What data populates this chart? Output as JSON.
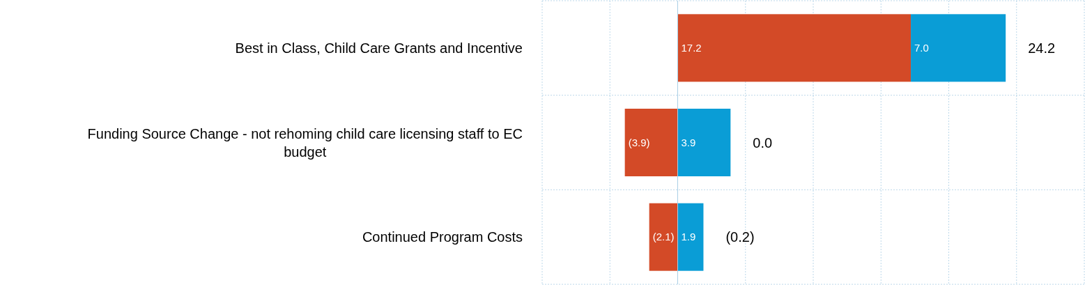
{
  "chart_data": {
    "type": "bar",
    "orientation": "horizontal",
    "stacked": true,
    "categories": [
      "Best in Class, Child Care Grants and Incentive",
      "Funding Source Change - not rehoming child care licensing staff to EC budget",
      "Continued Program Costs"
    ],
    "series": [
      {
        "color": "#d34a27",
        "values": [
          17.2,
          -3.9,
          -2.1
        ],
        "value_labels": [
          "17.2",
          "(3.9)",
          "(2.1)"
        ]
      },
      {
        "color": "#0a9dd6",
        "values": [
          7.0,
          3.9,
          1.9
        ],
        "value_labels": [
          "7.0",
          "3.9",
          "1.9"
        ]
      }
    ],
    "totals": [
      "24.2",
      "0.0",
      "(0.2)"
    ],
    "xlim": [
      -10,
      30
    ],
    "xticks": [
      {
        "value": -10,
        "label": null
      },
      {
        "value": -5,
        "label": null
      },
      {
        "value": 0,
        "label": null
      },
      {
        "value": 5,
        "label": null
      },
      {
        "value": 10,
        "label": null
      },
      {
        "value": 15,
        "label": null
      },
      {
        "value": 20,
        "label": null
      },
      {
        "value": 25,
        "label": null
      },
      {
        "value": 30,
        "label": null
      }
    ],
    "ref_lines": [
      {
        "axis": "x",
        "value": 0,
        "color": "#a9cfe6"
      }
    ],
    "grid": true
  }
}
